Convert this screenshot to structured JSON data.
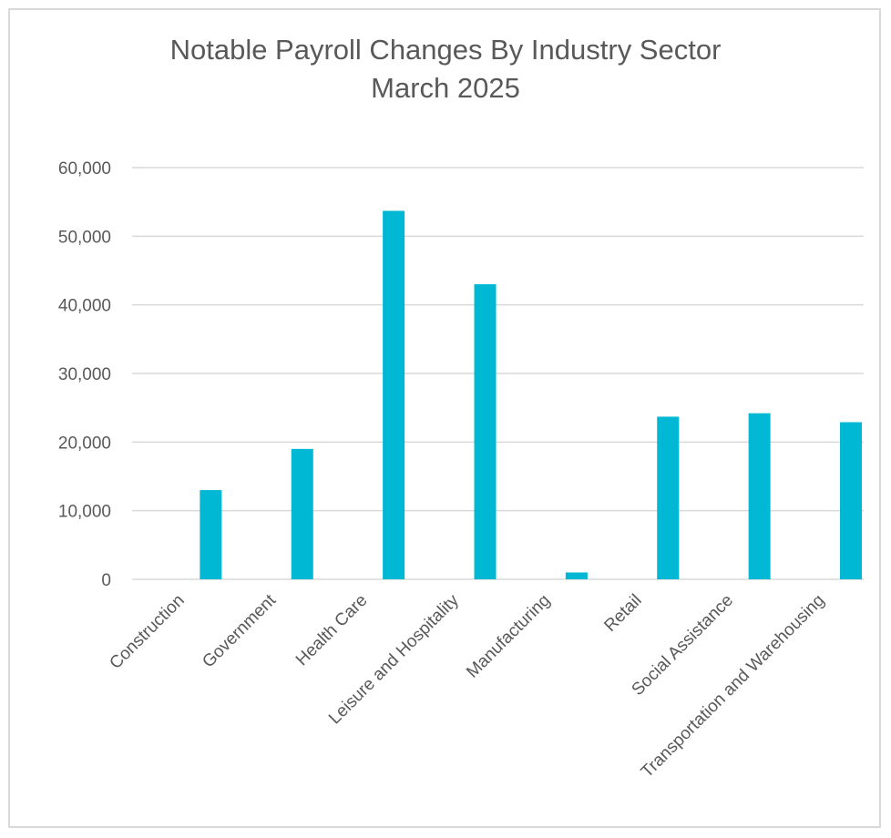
{
  "chart_data": {
    "type": "bar",
    "title": "Notable Payroll Changes By Industry Sector",
    "subtitle": "March 2025",
    "categories": [
      "Construction",
      "Government",
      "Health Care",
      "Leisure and Hospitality",
      "Manufacturing",
      "Retail",
      "Social Assistance",
      "Transportation and Warehousing"
    ],
    "series": [
      {
        "values": [
          13000,
          19000,
          53700,
          43000,
          1000,
          23700,
          24200,
          22900
        ]
      }
    ],
    "ylim": [
      0,
      60000
    ],
    "yticks": [
      "0",
      "10,000",
      "20,000",
      "30,000",
      "40,000",
      "50,000",
      "60,000"
    ],
    "grid": true,
    "legend": "none",
    "colors": {
      "bar": "#00b7d4",
      "grid": "#d9d9d9",
      "text": "#595959",
      "border": "#d9d9d9"
    }
  }
}
